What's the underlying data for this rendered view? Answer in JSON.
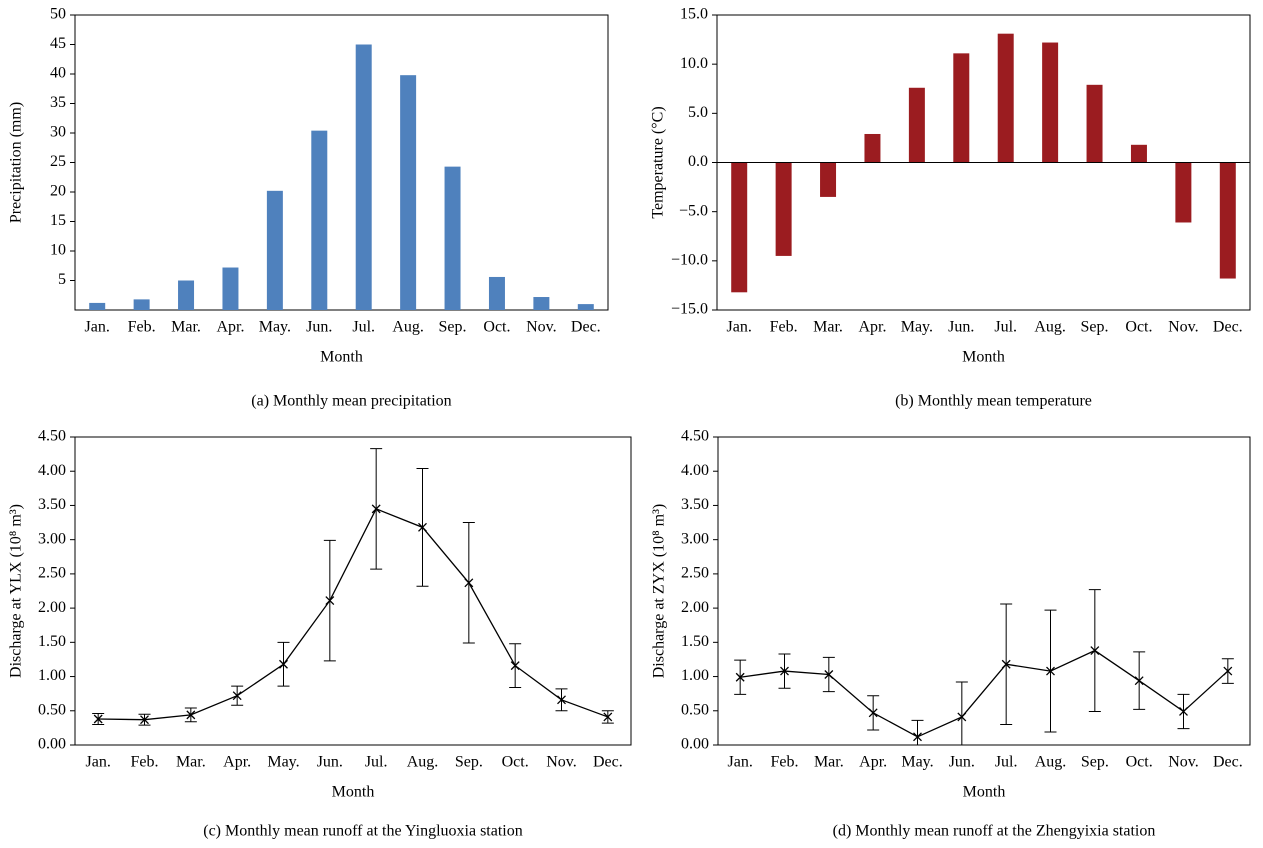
{
  "chart_data": [
    {
      "type": "bar",
      "caption": "(a)  Monthly mean precipitation",
      "xlabel": "Month",
      "ylabel": "Precipitation (mm)",
      "categories": [
        "Jan.",
        "Feb.",
        "Mar.",
        "Apr.",
        "May.",
        "Jun.",
        "Jul.",
        "Aug.",
        "Sep.",
        "Oct.",
        "Nov.",
        "Dec."
      ],
      "values": [
        1.2,
        1.8,
        5.0,
        7.2,
        20.2,
        30.4,
        45.0,
        39.8,
        24.3,
        5.6,
        2.2,
        1.0
      ],
      "color": "#4f81bd",
      "ylim": [
        0,
        50
      ],
      "yticks": [
        5,
        10,
        15,
        20,
        25,
        30,
        35,
        40,
        45,
        50
      ]
    },
    {
      "type": "bar",
      "caption": "(b)  Monthly mean temperature",
      "xlabel": "Month",
      "ylabel": "Temperature (°C)",
      "categories": [
        "Jan.",
        "Feb.",
        "Mar.",
        "Apr.",
        "May.",
        "Jun.",
        "Jul.",
        "Aug.",
        "Sep.",
        "Oct.",
        "Nov.",
        "Dec."
      ],
      "values": [
        -13.2,
        -9.5,
        -3.5,
        2.9,
        7.6,
        11.1,
        13.1,
        12.2,
        7.9,
        1.8,
        -6.1,
        -11.8
      ],
      "color": "#9b1c20",
      "ylim": [
        -15,
        15
      ],
      "yticks": [
        {
          "value": -15,
          "label": "−15.0"
        },
        {
          "value": -10,
          "label": "−10.0"
        },
        {
          "value": -5,
          "label": "−5.0"
        },
        {
          "value": 0,
          "label": "0.0"
        },
        {
          "value": 5,
          "label": "5.0"
        },
        {
          "value": 10,
          "label": "10.0"
        },
        {
          "value": 15,
          "label": "15.0"
        }
      ]
    },
    {
      "type": "line",
      "caption": "(c)  Monthly mean runoff at the Yingluoxia station",
      "xlabel": "Month",
      "ylabel": "Discharge at YLX (10⁸ m³)",
      "categories": [
        "Jan.",
        "Feb.",
        "Mar.",
        "Apr.",
        "May.",
        "Jun.",
        "Jul.",
        "Aug.",
        "Sep.",
        "Oct.",
        "Nov.",
        "Dec."
      ],
      "values": [
        0.38,
        0.37,
        0.44,
        0.72,
        1.18,
        2.11,
        3.45,
        3.18,
        2.37,
        1.16,
        0.66,
        0.41
      ],
      "errors": [
        0.08,
        0.08,
        0.1,
        0.14,
        0.32,
        0.88,
        0.88,
        0.86,
        0.88,
        0.32,
        0.16,
        0.09
      ],
      "color": "#000000",
      "ylim": [
        0,
        4.5
      ],
      "yticks": [
        {
          "value": 0,
          "label": "0.00"
        },
        {
          "value": 0.5,
          "label": "0.50"
        },
        {
          "value": 1,
          "label": "1.00"
        },
        {
          "value": 1.5,
          "label": "1.50"
        },
        {
          "value": 2,
          "label": "2.00"
        },
        {
          "value": 2.5,
          "label": "2.50"
        },
        {
          "value": 3,
          "label": "3.00"
        },
        {
          "value": 3.5,
          "label": "3.50"
        },
        {
          "value": 4,
          "label": "4.00"
        },
        {
          "value": 4.5,
          "label": "4.50"
        }
      ]
    },
    {
      "type": "line",
      "caption": "(d)  Monthly mean runoff at the Zhengyixia station",
      "xlabel": "Month",
      "ylabel": "Discharge at ZYX (10⁸ m³)",
      "categories": [
        "Jan.",
        "Feb.",
        "Mar.",
        "Apr.",
        "May.",
        "Jun.",
        "Jul.",
        "Aug.",
        "Sep.",
        "Oct.",
        "Nov.",
        "Dec."
      ],
      "values": [
        0.99,
        1.08,
        1.03,
        0.47,
        0.12,
        0.41,
        1.18,
        1.08,
        1.38,
        0.94,
        0.49,
        1.08
      ],
      "errors": [
        0.25,
        0.25,
        0.25,
        0.25,
        0.24,
        0.51,
        0.88,
        0.89,
        0.89,
        0.42,
        0.25,
        0.18
      ],
      "color": "#000000",
      "ylim": [
        0,
        4.5
      ],
      "yticks": [
        {
          "value": 0,
          "label": "0.00"
        },
        {
          "value": 0.5,
          "label": "0.50"
        },
        {
          "value": 1,
          "label": "1.00"
        },
        {
          "value": 1.5,
          "label": "1.50"
        },
        {
          "value": 2,
          "label": "2.00"
        },
        {
          "value": 2.5,
          "label": "2.50"
        },
        {
          "value": 3,
          "label": "3.00"
        },
        {
          "value": 3.5,
          "label": "3.50"
        },
        {
          "value": 4,
          "label": "4.00"
        },
        {
          "value": 4.5,
          "label": "4.50"
        }
      ]
    }
  ]
}
